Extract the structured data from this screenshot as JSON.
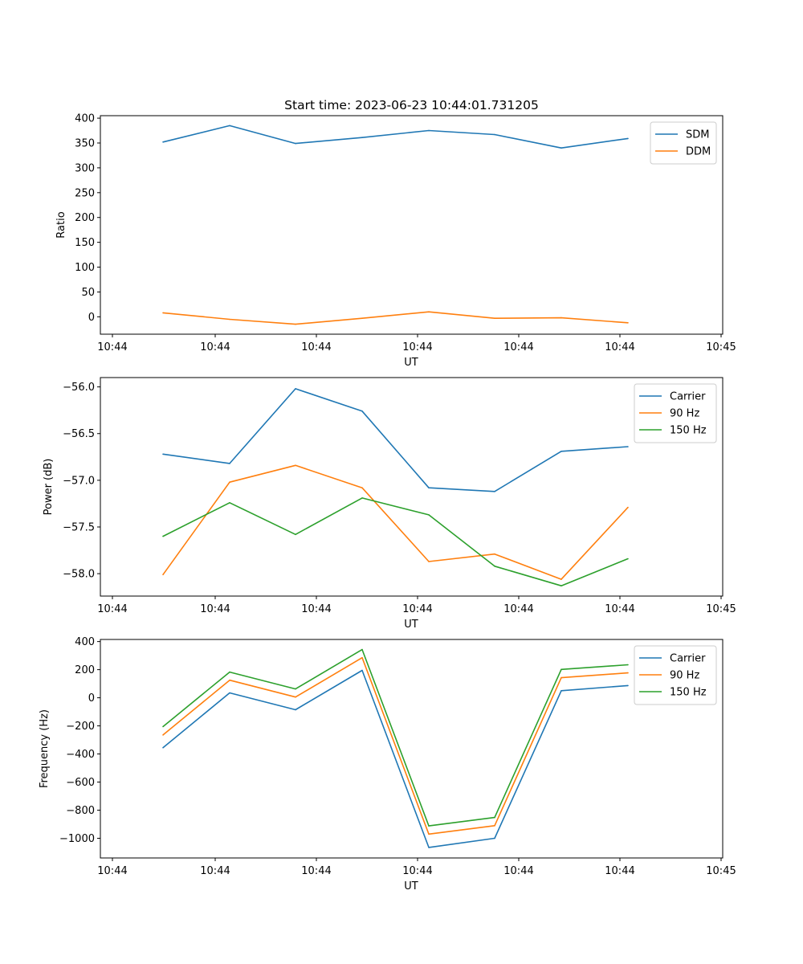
{
  "chart_data": [
    {
      "type": "line",
      "title": "Start time: 2023-06-23 10:44:01.731205",
      "xlabel": "UT",
      "ylabel": "Ratio",
      "xtick_labels": [
        "10:44",
        "10:44",
        "10:44",
        "10:44",
        "10:44",
        "10:44",
        "10:44",
        "10:45"
      ],
      "yticks": [
        0,
        50,
        100,
        150,
        200,
        250,
        300,
        350,
        400
      ],
      "ylim": [
        -35,
        405
      ],
      "legend": "top-right",
      "series": [
        {
          "name": "SDM",
          "color": "#1f77b4",
          "values": [
            352,
            385,
            349,
            361,
            375,
            367,
            340,
            359
          ]
        },
        {
          "name": "DDM",
          "color": "#ff7f0e",
          "values": [
            8,
            -5,
            -15,
            -3,
            10,
            -3,
            -2,
            -12
          ]
        }
      ]
    },
    {
      "type": "line",
      "title": "",
      "xlabel": "UT",
      "ylabel": "Power (dB)",
      "xtick_labels": [
        "10:44",
        "10:44",
        "10:44",
        "10:44",
        "10:44",
        "10:44",
        "10:44",
        "10:45"
      ],
      "yticks": [
        -58.0,
        -57.5,
        -57.0,
        -56.5,
        -56.0
      ],
      "ytick_labels": [
        "−58.0",
        "−57.5",
        "−57.0",
        "−56.5",
        "−56.0"
      ],
      "ylim": [
        -58.24,
        -55.9
      ],
      "legend": "top-right",
      "series": [
        {
          "name": "Carrier",
          "color": "#1f77b4",
          "values": [
            -56.72,
            -56.82,
            -56.02,
            -56.26,
            -57.08,
            -57.12,
            -56.69,
            -56.64
          ]
        },
        {
          "name": "90 Hz",
          "color": "#ff7f0e",
          "values": [
            -58.01,
            -57.02,
            -56.84,
            -57.08,
            -57.87,
            -57.79,
            -58.06,
            -57.29
          ]
        },
        {
          "name": "150 Hz",
          "color": "#2ca02c",
          "values": [
            -57.6,
            -57.24,
            -57.58,
            -57.19,
            -57.37,
            -57.92,
            -58.13,
            -57.84
          ]
        }
      ]
    },
    {
      "type": "line",
      "title": "",
      "xlabel": "UT",
      "ylabel": "Frequency (Hz)",
      "xtick_labels": [
        "10:44",
        "10:44",
        "10:44",
        "10:44",
        "10:44",
        "10:44",
        "10:44",
        "10:45"
      ],
      "yticks": [
        -1000,
        -800,
        -600,
        -400,
        -200,
        0,
        200,
        400
      ],
      "ytick_labels": [
        "−1000",
        "−800",
        "−600",
        "−400",
        "−200",
        "0",
        "200",
        "400"
      ],
      "ylim": [
        -1140,
        415
      ],
      "legend": "top-right",
      "series": [
        {
          "name": "Carrier",
          "color": "#1f77b4",
          "values": [
            -355,
            35,
            -85,
            195,
            -1065,
            -1000,
            50,
            87
          ]
        },
        {
          "name": "90 Hz",
          "color": "#ff7f0e",
          "values": [
            -265,
            125,
            5,
            285,
            -970,
            -910,
            143,
            177
          ]
        },
        {
          "name": "150 Hz",
          "color": "#2ca02c",
          "values": [
            -205,
            183,
            63,
            343,
            -912,
            -852,
            202,
            235
          ]
        }
      ]
    }
  ]
}
